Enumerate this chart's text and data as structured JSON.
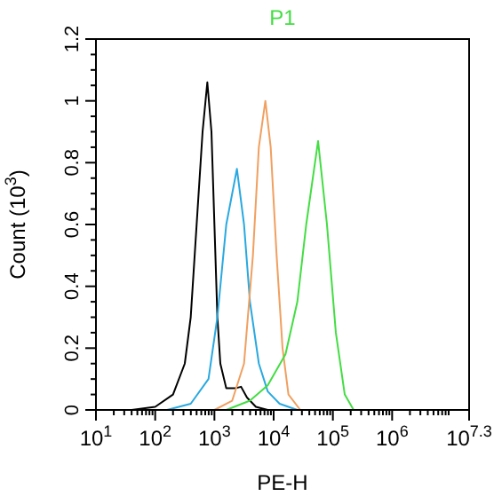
{
  "chart_data": {
    "type": "line",
    "xlabel": "PE-H",
    "ylabel": "Count (10$^{3}$)",
    "log": "x",
    "xlim": [
      10,
      19952623
    ],
    "xticks": [
      {
        "value": 10,
        "label": "10$^{1}$"
      },
      {
        "value": 100,
        "label": "10$^{2}$"
      },
      {
        "value": 1000,
        "label": "10$^{3}$"
      },
      {
        "value": 10000,
        "label": "10$^{4}$"
      },
      {
        "value": 100000,
        "label": "10$^{5}$"
      },
      {
        "value": 1000000,
        "label": "10$^{6}$"
      },
      {
        "value": 19952623,
        "label": "10$^{7.3}$"
      }
    ],
    "ylim": [
      0,
      1.2
    ],
    "yticks": [
      0,
      0.2,
      0.4,
      0.6,
      0.8,
      1,
      1.2
    ],
    "marker": "none",
    "line_style": "solid",
    "series": [
      {
        "color": "#000000",
        "x": [
          40,
          100,
          200,
          316,
          398,
          501,
          631,
          759,
          891,
          1000,
          1122,
          1259,
          1585,
          2239,
          2818,
          3548,
          5012,
          7943
        ],
        "values": [
          0,
          0.01,
          0.05,
          0.15,
          0.3,
          0.6,
          0.9,
          1.06,
          0.9,
          0.6,
          0.3,
          0.15,
          0.07,
          0.07,
          0.075,
          0.04,
          0.01,
          0
        ]
      },
      {
        "color": "#29a9e0",
        "x": [
          158,
          398,
          794,
          1122,
          1585,
          2399,
          3162,
          3981,
          5623,
          7943,
          12589,
          25119
        ],
        "values": [
          0,
          0.02,
          0.1,
          0.3,
          0.6,
          0.78,
          0.6,
          0.35,
          0.15,
          0.06,
          0.02,
          0
        ]
      },
      {
        "color": "#f0a060",
        "x": [
          1000,
          1995,
          3162,
          4467,
          5623,
          7244,
          8913,
          11220,
          14125,
          17783,
          28184
        ],
        "values": [
          0,
          0.03,
          0.15,
          0.5,
          0.85,
          1.0,
          0.85,
          0.5,
          0.2,
          0.05,
          0
        ]
      },
      {
        "name": "P1",
        "color": "#44dd44",
        "x": [
          1585,
          3981,
          7943,
          15849,
          25119,
          35481,
          56234,
          79433,
          112202,
          158489,
          223872
        ],
        "values": [
          0,
          0.03,
          0.08,
          0.18,
          0.35,
          0.6,
          0.87,
          0.6,
          0.25,
          0.05,
          0
        ]
      }
    ]
  }
}
